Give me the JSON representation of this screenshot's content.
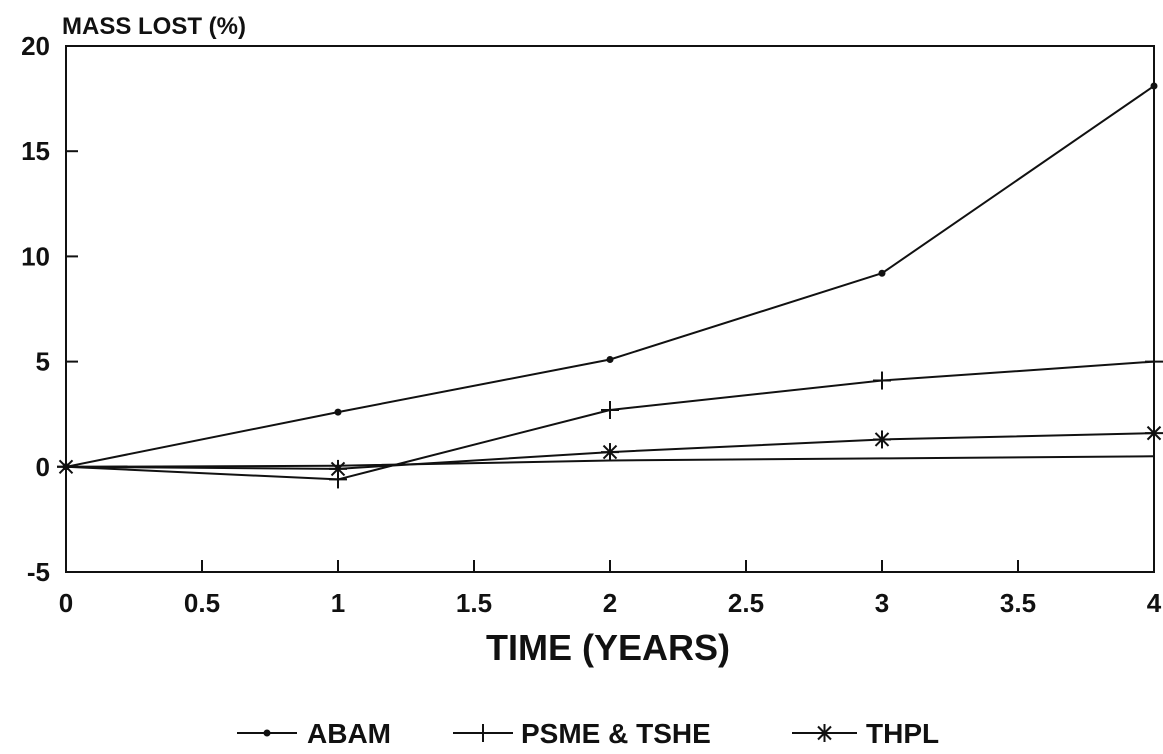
{
  "chart_data": {
    "type": "line",
    "title": "",
    "ylabel": "MASS LOST (%)",
    "xlabel": "TIME (YEARS)",
    "xlim": [
      0,
      4
    ],
    "ylim": [
      -5,
      20
    ],
    "x_ticks": [
      0,
      0.5,
      1,
      1.5,
      2,
      2.5,
      3,
      3.5,
      4
    ],
    "x_tick_labels": [
      "0",
      "0.5",
      "1",
      "1.5",
      "2",
      "2.5",
      "3",
      "3.5",
      "4"
    ],
    "y_ticks": [
      -5,
      0,
      5,
      10,
      15,
      20
    ],
    "y_tick_labels": [
      "-5",
      "0",
      "5",
      "10",
      "15",
      "20"
    ],
    "grid": false,
    "legend_position": "bottom",
    "x": [
      0,
      1,
      2,
      3,
      4
    ],
    "series": [
      {
        "name": "ABAM",
        "marker": "dot",
        "values": [
          0,
          2.6,
          5.1,
          9.2,
          18.1
        ]
      },
      {
        "name": "PSME & TSHE",
        "marker": "plus",
        "values": [
          0,
          -0.6,
          2.7,
          4.1,
          5.0
        ]
      },
      {
        "name": "THPL",
        "marker": "asterisk",
        "values": [
          0,
          -0.1,
          0.7,
          1.3,
          1.6
        ]
      },
      {
        "name": "",
        "marker": "none",
        "values": [
          0,
          0.05,
          0.3,
          0.4,
          0.5
        ]
      }
    ]
  }
}
